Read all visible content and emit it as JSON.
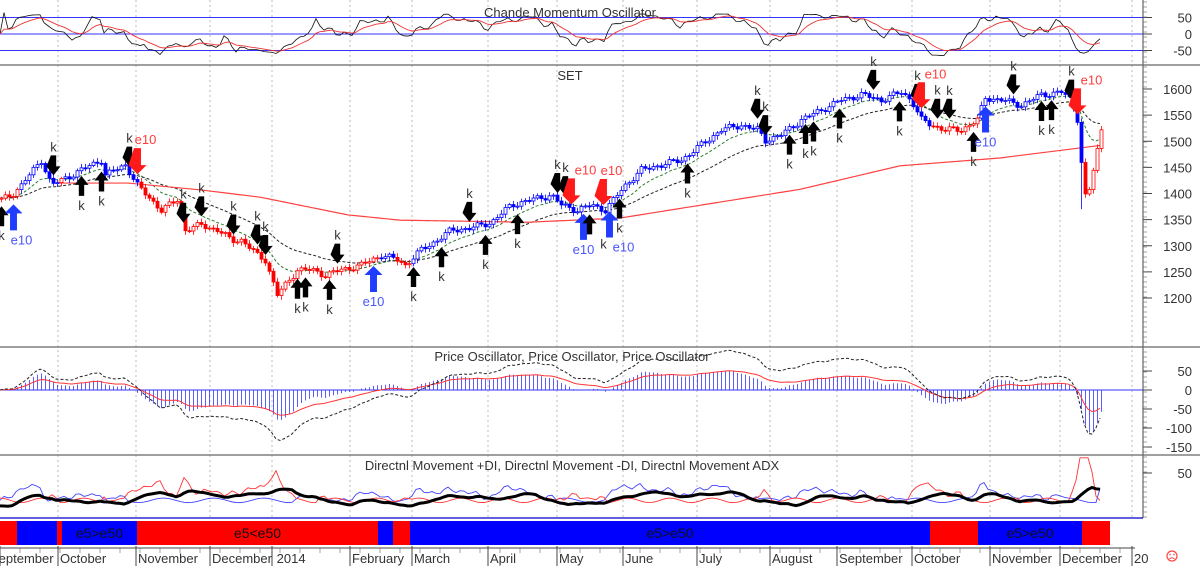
{
  "chart_data": {
    "type": "candlestick-with-indicators",
    "title": "SET",
    "x_unit": "trading day index",
    "close_anchors": [
      [
        0,
        1388
      ],
      [
        2.5,
        1397
      ],
      [
        5,
        1416
      ],
      [
        10,
        1464
      ],
      [
        12.5,
        1416
      ],
      [
        17.5,
        1435
      ],
      [
        22.5,
        1455
      ],
      [
        25,
        1464
      ],
      [
        26,
        1435
      ],
      [
        31,
        1455
      ],
      [
        34,
        1416
      ],
      [
        35,
        1407
      ],
      [
        37.5,
        1388
      ],
      [
        40,
        1368
      ],
      [
        44,
        1388
      ],
      [
        46,
        1330
      ],
      [
        50,
        1340
      ],
      [
        54,
        1330
      ],
      [
        57.5,
        1311
      ],
      [
        60,
        1311
      ],
      [
        64,
        1282
      ],
      [
        66,
        1273
      ],
      [
        69,
        1206
      ],
      [
        71,
        1225
      ],
      [
        74,
        1254
      ],
      [
        77.5,
        1254
      ],
      [
        81,
        1244
      ],
      [
        85,
        1254
      ],
      [
        90,
        1263
      ],
      [
        95,
        1282
      ],
      [
        99,
        1273
      ],
      [
        101,
        1263
      ],
      [
        105,
        1292
      ],
      [
        109,
        1311
      ],
      [
        112.5,
        1330
      ],
      [
        117.5,
        1334
      ],
      [
        122.5,
        1345
      ],
      [
        127.5,
        1378
      ],
      [
        132.5,
        1388
      ],
      [
        137.5,
        1397
      ],
      [
        140,
        1378
      ],
      [
        144,
        1368
      ],
      [
        147.5,
        1378
      ],
      [
        151,
        1368
      ],
      [
        154,
        1397
      ],
      [
        156,
        1416
      ],
      [
        160,
        1445
      ],
      [
        165,
        1455
      ],
      [
        170,
        1464
      ],
      [
        175,
        1493
      ],
      [
        180,
        1522
      ],
      [
        185,
        1531
      ],
      [
        189,
        1522
      ],
      [
        191,
        1502
      ],
      [
        195,
        1512
      ],
      [
        200,
        1541
      ],
      [
        205,
        1560
      ],
      [
        210,
        1579
      ],
      [
        215,
        1589
      ],
      [
        220,
        1579
      ],
      [
        225,
        1594
      ],
      [
        227.5,
        1579
      ],
      [
        230,
        1541
      ],
      [
        232.5,
        1531
      ],
      [
        236,
        1522
      ],
      [
        240,
        1522
      ],
      [
        244,
        1541
      ],
      [
        246,
        1583
      ],
      [
        250,
        1579
      ],
      [
        255,
        1569
      ],
      [
        260,
        1589
      ],
      [
        265,
        1594
      ],
      [
        267.5,
        1579
      ],
      [
        269.5,
        1531
      ],
      [
        270.5,
        1388
      ],
      [
        272,
        1407
      ],
      [
        274,
        1483
      ],
      [
        275,
        1522
      ]
    ],
    "slow_ma_anchors": [
      [
        14,
        1420
      ],
      [
        32,
        1420
      ],
      [
        50,
        1407
      ],
      [
        65,
        1393
      ],
      [
        87,
        1359
      ],
      [
        100,
        1349
      ],
      [
        132,
        1345
      ],
      [
        155,
        1353
      ],
      [
        200,
        1408
      ],
      [
        225,
        1453
      ],
      [
        250,
        1468
      ],
      [
        275,
        1492
      ]
    ],
    "signals": [
      {
        "day": 0,
        "dir": "up",
        "kind": "k",
        "label": "k"
      },
      {
        "day": 3,
        "dir": "up",
        "kind": "e10",
        "label": "e10"
      },
      {
        "day": 13,
        "dir": "down",
        "kind": "k",
        "label": "k"
      },
      {
        "day": 20,
        "dir": "up",
        "kind": "k",
        "label": "k"
      },
      {
        "day": 25,
        "dir": "up",
        "kind": "k",
        "label": "k"
      },
      {
        "day": 32,
        "dir": "down",
        "kind": "k",
        "label": "k"
      },
      {
        "day": 34,
        "dir": "down",
        "kind": "e10",
        "label": "e10"
      },
      {
        "day": 45.5,
        "dir": "down",
        "kind": "k",
        "label": "k"
      },
      {
        "day": 50,
        "dir": "down",
        "kind": "k",
        "label": "k"
      },
      {
        "day": 58,
        "dir": "down",
        "kind": "k",
        "label": "k"
      },
      {
        "day": 64,
        "dir": "down",
        "kind": "k",
        "label": "k"
      },
      {
        "day": 66,
        "dir": "down",
        "kind": "k",
        "label": "k"
      },
      {
        "day": 74,
        "dir": "up",
        "kind": "k",
        "label": "k"
      },
      {
        "day": 76,
        "dir": "up",
        "kind": "k",
        "label": "k"
      },
      {
        "day": 82,
        "dir": "up",
        "kind": "k",
        "label": "k"
      },
      {
        "day": 84,
        "dir": "down",
        "kind": "k",
        "label": "k"
      },
      {
        "day": 93,
        "dir": "up",
        "kind": "e10",
        "label": "e10"
      },
      {
        "day": 103,
        "dir": "up",
        "kind": "k",
        "label": "k"
      },
      {
        "day": 110,
        "dir": "up",
        "kind": "k",
        "label": "k"
      },
      {
        "day": 117,
        "dir": "down",
        "kind": "k",
        "label": "k"
      },
      {
        "day": 121,
        "dir": "up",
        "kind": "k",
        "label": "k"
      },
      {
        "day": 129,
        "dir": "up",
        "kind": "k",
        "label": "k"
      },
      {
        "day": 139,
        "dir": "down",
        "kind": "k",
        "label": "k"
      },
      {
        "day": 141,
        "dir": "down",
        "kind": "k",
        "label": "k"
      },
      {
        "day": 142.5,
        "dir": "down",
        "kind": "e10",
        "label": "e10"
      },
      {
        "day": 145.5,
        "dir": "up",
        "kind": "e10",
        "label": "e10"
      },
      {
        "day": 147,
        "dir": "up",
        "kind": "k",
        "label": "k"
      },
      {
        "day": 150.5,
        "dir": "down",
        "kind": "e10",
        "label": "e10"
      },
      {
        "day": 152,
        "dir": "up",
        "kind": "e10",
        "label": "e10"
      },
      {
        "day": 154.5,
        "dir": "up",
        "kind": "k",
        "label": "k"
      },
      {
        "day": 171.5,
        "dir": "up",
        "kind": "k",
        "label": "k"
      },
      {
        "day": 189,
        "dir": "down",
        "kind": "k",
        "label": "k"
      },
      {
        "day": 191,
        "dir": "down",
        "kind": "k",
        "label": "k"
      },
      {
        "day": 197,
        "dir": "up",
        "kind": "k",
        "label": "k"
      },
      {
        "day": 201,
        "dir": "up",
        "kind": "k",
        "label": "k"
      },
      {
        "day": 203,
        "dir": "up",
        "kind": "k",
        "label": "k"
      },
      {
        "day": 209.5,
        "dir": "up",
        "kind": "k",
        "label": "k"
      },
      {
        "day": 218,
        "dir": "down",
        "kind": "k",
        "label": "k"
      },
      {
        "day": 224.5,
        "dir": "up",
        "kind": "k",
        "label": "k"
      },
      {
        "day": 229,
        "dir": "down",
        "kind": "k",
        "label": "k"
      },
      {
        "day": 230,
        "dir": "down",
        "kind": "e10",
        "label": "e10"
      },
      {
        "day": 234,
        "dir": "down",
        "kind": "k",
        "label": "k"
      },
      {
        "day": 237,
        "dir": "down",
        "kind": "k",
        "label": "k"
      },
      {
        "day": 243,
        "dir": "up",
        "kind": "k",
        "label": "k"
      },
      {
        "day": 246,
        "dir": "up",
        "kind": "e10",
        "label": "e10"
      },
      {
        "day": 253,
        "dir": "down",
        "kind": "k",
        "label": "k"
      },
      {
        "day": 260,
        "dir": "up",
        "kind": "k",
        "label": "k"
      },
      {
        "day": 262.5,
        "dir": "up",
        "kind": "k",
        "label": "k"
      },
      {
        "day": 267.5,
        "dir": "down",
        "kind": "k",
        "label": "k"
      },
      {
        "day": 269,
        "dir": "down",
        "kind": "e10",
        "label": "e10"
      }
    ],
    "bands": [
      {
        "from": 0,
        "to": 4.25,
        "state": "bear",
        "label": ""
      },
      {
        "from": 4.25,
        "to": 14.25,
        "state": "bull",
        "label": ""
      },
      {
        "from": 14.25,
        "to": 15.5,
        "state": "bear",
        "label": ""
      },
      {
        "from": 15.5,
        "to": 34.25,
        "state": "bull",
        "label": "e5>e50"
      },
      {
        "from": 34.25,
        "to": 94.5,
        "state": "bear",
        "label": "e5<e50"
      },
      {
        "from": 94.5,
        "to": 98.25,
        "state": "bull",
        "label": ""
      },
      {
        "from": 98.25,
        "to": 102.5,
        "state": "bear",
        "label": ""
      },
      {
        "from": 102.5,
        "to": 232.5,
        "state": "bull",
        "label": "e5>e50"
      },
      {
        "from": 232.5,
        "to": 244.5,
        "state": "bear",
        "label": ""
      },
      {
        "from": 244.5,
        "to": 270.5,
        "state": "bull",
        "label": "e5>e50"
      },
      {
        "from": 270.5,
        "to": 277.5,
        "state": "bear",
        "label": ""
      }
    ],
    "months": [
      {
        "day": -2,
        "label": "September"
      },
      {
        "day": 14.5,
        "label": "October"
      },
      {
        "day": 34,
        "label": "November"
      },
      {
        "day": 52.5,
        "label": "December"
      },
      {
        "day": 68,
        "label": "2014"
      },
      {
        "day": 87.5,
        "label": "February"
      },
      {
        "day": 103,
        "label": "March"
      },
      {
        "day": 122,
        "label": "April"
      },
      {
        "day": 139.25,
        "label": "May"
      },
      {
        "day": 155.75,
        "label": "June"
      },
      {
        "day": 174.25,
        "label": "July"
      },
      {
        "day": 192.5,
        "label": "August"
      },
      {
        "day": 209.25,
        "label": "September"
      },
      {
        "day": 228,
        "label": "October"
      },
      {
        "day": 247.5,
        "label": "November"
      },
      {
        "day": 265,
        "label": "December"
      },
      {
        "day": 283,
        "label": "20"
      }
    ],
    "panels": {
      "cmo": {
        "title": "Chande Momentum Oscillator",
        "ticks": [
          "50",
          "0",
          "-50"
        ],
        "levels": [
          50,
          0,
          -50
        ]
      },
      "price": {
        "title": "SET",
        "ticks": [
          "1600",
          "1550",
          "1500",
          "1450",
          "1400",
          "1350",
          "1300",
          "1250",
          "1200"
        ],
        "ylim": [
          1180,
          1650
        ]
      },
      "ppo": {
        "title": "Price Oscillator, Price Oscillator, Price Oscillator",
        "ticks": [
          "50",
          "0",
          "-50",
          "-100",
          "-150"
        ]
      },
      "dmi": {
        "title": "Directnl Movement +DI, Directnl Movement -DI, Directnl Movement ADX",
        "ticks": [
          "50"
        ]
      }
    },
    "colors": {
      "bull": "#0000ff",
      "bear": "#ff0000",
      "neutral": "#000000",
      "slow_ma": "#ff4040",
      "fast_ma": "#2e7d32"
    }
  },
  "status_icon": "sad-face-icon"
}
